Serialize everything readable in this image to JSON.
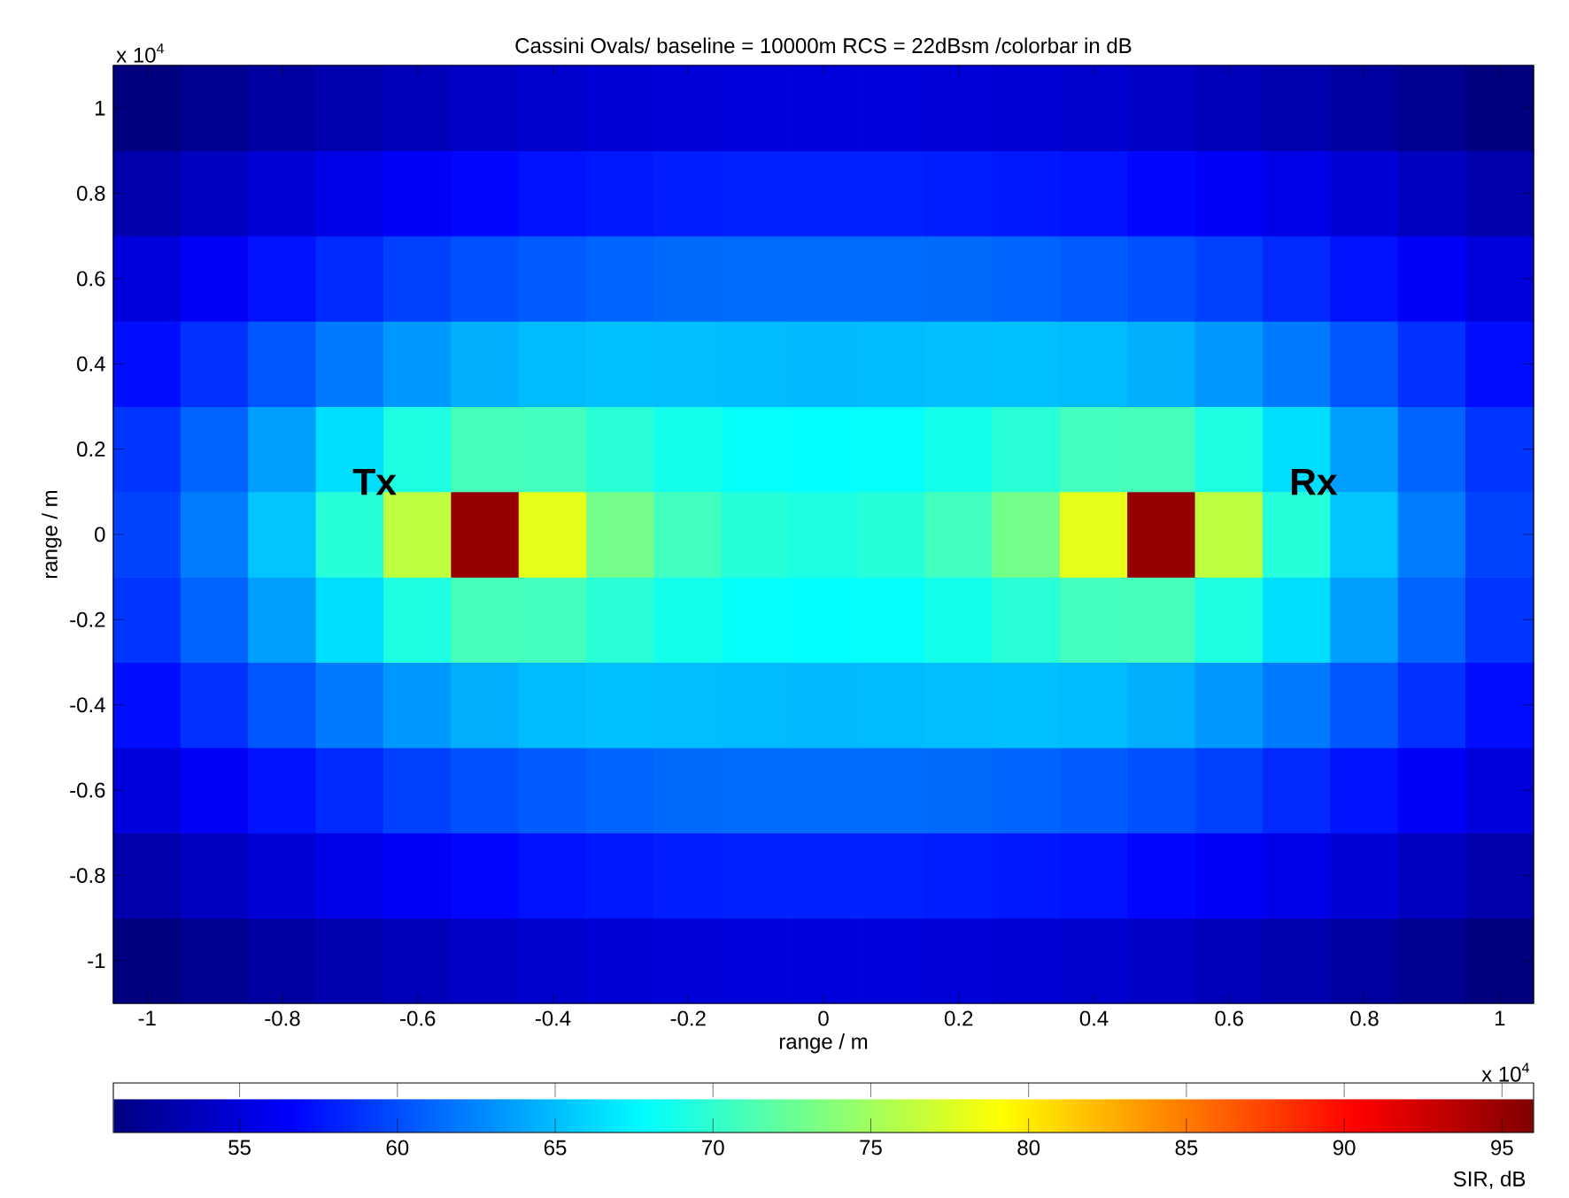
{
  "chart_data": {
    "type": "heatmap",
    "title": "Cassini Ovals/ baseline = 10000m RCS = 22dBsm /colorbar in dB",
    "xlabel": "range / m",
    "ylabel": "range / m",
    "clabel": "SIR, dB",
    "categories": [
      "-1",
      null,
      "-0.8",
      null,
      "-0.6",
      null,
      "-0.4",
      null,
      "-0.2",
      null,
      "0",
      null,
      "0.2",
      null,
      "0.4",
      null,
      "0.6",
      null,
      "0.8",
      null,
      "1"
    ],
    "y_categories": [
      "1",
      "0.8",
      "0.6",
      "0.4",
      "0.2",
      "0",
      "-0.2",
      "-0.4",
      "-0.6",
      "-0.8",
      "-1"
    ],
    "clim": [
      51,
      96
    ],
    "cticks": [
      55,
      60,
      65,
      70,
      75,
      80,
      85,
      90,
      95
    ],
    "cells": [
      [
        51.0,
        51.7,
        52.4,
        53.1,
        53.6,
        54.1,
        54.5,
        54.8,
        55.0,
        55.1,
        55.2,
        55.1,
        55.0,
        54.8,
        54.5,
        54.1,
        53.6,
        53.1,
        52.4,
        51.7,
        51.0
      ],
      [
        53.0,
        53.9,
        54.8,
        55.6,
        56.3,
        56.9,
        57.4,
        57.7,
        57.9,
        58.1,
        58.1,
        58.1,
        57.9,
        57.7,
        57.4,
        56.9,
        56.3,
        55.6,
        54.8,
        53.9,
        53.0
      ],
      [
        55.1,
        56.3,
        57.4,
        58.5,
        59.5,
        60.2,
        60.7,
        61.1,
        61.3,
        61.4,
        61.4,
        61.4,
        61.3,
        61.1,
        60.7,
        60.2,
        59.5,
        58.5,
        57.4,
        56.3,
        55.1
      ],
      [
        57.2,
        58.8,
        60.4,
        62.0,
        63.4,
        64.4,
        64.9,
        65.1,
        65.0,
        64.9,
        64.8,
        64.9,
        65.0,
        65.1,
        64.9,
        64.4,
        63.4,
        62.0,
        60.4,
        58.8,
        57.2
      ],
      [
        58.9,
        61.1,
        63.6,
        66.4,
        69.1,
        70.9,
        70.8,
        69.7,
        68.7,
        68.1,
        67.9,
        68.1,
        68.7,
        69.7,
        70.8,
        70.9,
        69.1,
        66.4,
        63.6,
        61.1,
        58.9
      ],
      [
        59.6,
        62.1,
        65.3,
        69.5,
        76.3,
        95.0,
        78.0,
        73.0,
        70.7,
        69.5,
        69.1,
        69.5,
        70.7,
        73.0,
        78.0,
        95.0,
        76.3,
        69.5,
        65.3,
        62.1,
        59.6
      ],
      [
        58.9,
        61.1,
        63.6,
        66.4,
        69.1,
        70.9,
        70.8,
        69.7,
        68.7,
        68.1,
        67.9,
        68.1,
        68.7,
        69.7,
        70.8,
        70.9,
        69.1,
        66.4,
        63.6,
        61.1,
        58.9
      ],
      [
        57.2,
        58.8,
        60.4,
        62.0,
        63.4,
        64.4,
        64.9,
        65.1,
        65.0,
        64.9,
        64.8,
        64.9,
        65.0,
        65.1,
        64.9,
        64.4,
        63.4,
        62.0,
        60.4,
        58.8,
        57.2
      ],
      [
        55.1,
        56.3,
        57.4,
        58.5,
        59.5,
        60.2,
        60.7,
        61.1,
        61.3,
        61.4,
        61.4,
        61.4,
        61.3,
        61.1,
        60.7,
        60.2,
        59.5,
        58.5,
        57.4,
        56.3,
        55.1
      ],
      [
        53.0,
        53.9,
        54.8,
        55.6,
        56.3,
        56.9,
        57.4,
        57.7,
        57.9,
        58.1,
        58.1,
        58.1,
        57.9,
        57.7,
        57.4,
        56.9,
        56.3,
        55.6,
        54.8,
        53.9,
        53.0
      ],
      [
        51.0,
        51.7,
        52.4,
        53.1,
        53.6,
        54.1,
        54.5,
        54.8,
        55.0,
        55.1,
        55.2,
        55.1,
        55.0,
        54.8,
        54.5,
        54.1,
        53.6,
        53.1,
        52.4,
        51.7,
        51.0
      ]
    ],
    "annotations": [
      "Tx",
      "Rx",
      "x 10$^{4}$",
      "x 10$^{4}$"
    ]
  }
}
